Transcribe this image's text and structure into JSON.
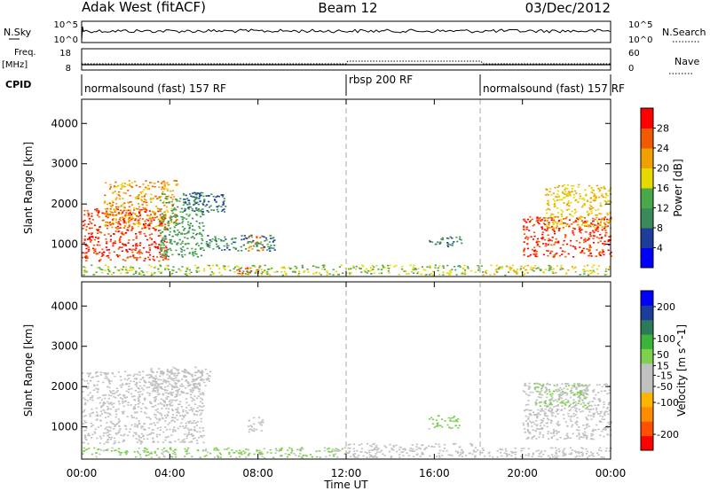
{
  "header": {
    "site": "Adak West (fitACF)",
    "beam": "Beam 12",
    "date": "03/Dec/2012"
  },
  "top_panels": {
    "nsky_label": "N.Sky",
    "nsky_ticks": [
      "10^5",
      "10^0"
    ],
    "nsearch_label": "N.Search",
    "nsearch_ticks": [
      "10^5",
      "10^0"
    ],
    "freq_label": "Freq.",
    "freq_unit": "[MHz]",
    "freq_ticks": [
      "18",
      "8"
    ],
    "nave_label": "Nave",
    "nave_ticks": [
      "60",
      "0"
    ],
    "cpid_label": "CPID",
    "cpid_segments": [
      {
        "label": "normalsound (fast) 157 RF",
        "start": 0,
        "end": 12
      },
      {
        "label": "rbsp 200 RF",
        "start": 12,
        "end": 18
      },
      {
        "label": "normalsound (fast) 157 RF",
        "start": 18,
        "end": 24
      }
    ]
  },
  "x_axis": {
    "title": "Time UT",
    "tick_labels": [
      "00:00",
      "04:00",
      "08:00",
      "12:00",
      "16:00",
      "20:00",
      "00:00"
    ]
  },
  "colors": {
    "power_scale": [
      "#0000ff",
      "#1e3c9a",
      "#3a8a5a",
      "#4aa84a",
      "#e6d800",
      "#f0a000",
      "#f05a00",
      "#ff0000"
    ],
    "velocity_scale": [
      "#ff0000",
      "#ff5000",
      "#ff8c00",
      "#ffb400",
      "#c0c0c0",
      "#c0c0c0",
      "#7ed04e",
      "#3cb43c",
      "#2d7a5a",
      "#1e3c9a",
      "#0000ff"
    ]
  },
  "chart_data": [
    {
      "type": "heatmap",
      "name": "power",
      "ylabel": "Slant Range [km]",
      "y_ticks": [
        "1000",
        "2000",
        "3000",
        "4000"
      ],
      "ylim": [
        200,
        4600
      ],
      "xlim": [
        0,
        24
      ],
      "colorbar_label": "Power [dB]",
      "colorbar_ticks": [
        "4",
        "8",
        "12",
        "16",
        "20",
        "24",
        "28"
      ],
      "colorbar_range": [
        0,
        32
      ],
      "regions": [
        {
          "t": [
            0.0,
            3.9
          ],
          "r": [
            600,
            1900
          ],
          "v": 28
        },
        {
          "t": [
            1.0,
            4.3
          ],
          "r": [
            1400,
            2600
          ],
          "v": 22
        },
        {
          "t": [
            3.5,
            5.5
          ],
          "r": [
            700,
            2300
          ],
          "v": 12
        },
        {
          "t": [
            4.5,
            6.5
          ],
          "r": [
            1800,
            2300
          ],
          "v": 8
        },
        {
          "t": [
            7.5,
            8.2
          ],
          "r": [
            850,
            1250
          ],
          "v": 24
        },
        {
          "t": [
            5.5,
            8.8
          ],
          "r": [
            850,
            1250
          ],
          "v": 10
        },
        {
          "t": [
            7.0,
            8.2
          ],
          "r": [
            250,
            450
          ],
          "v": 28
        },
        {
          "t": [
            0.0,
            18.0
          ],
          "r": [
            250,
            500
          ],
          "v": 16
        },
        {
          "t": [
            15.7,
            17.2
          ],
          "r": [
            950,
            1200
          ],
          "v": 10
        },
        {
          "t": [
            20.0,
            24.0
          ],
          "r": [
            700,
            1700
          ],
          "v": 28
        },
        {
          "t": [
            21.0,
            24.0
          ],
          "r": [
            1400,
            2500
          ],
          "v": 20
        },
        {
          "t": [
            18.0,
            24.0
          ],
          "r": [
            250,
            500
          ],
          "v": 18
        }
      ]
    },
    {
      "type": "heatmap",
      "name": "velocity",
      "ylabel": "Slant Range [km]",
      "y_ticks": [
        "1000",
        "2000",
        "3000",
        "4000"
      ],
      "ylim": [
        200,
        4600
      ],
      "xlim": [
        0,
        24
      ],
      "colorbar_label": "Velocity [m s^-1]",
      "colorbar_ticks": [
        "200",
        "100",
        "50",
        "15",
        "-15",
        "-50",
        "-100",
        "-200"
      ],
      "colorbar_range": [
        -250,
        250
      ],
      "regions": [
        {
          "t": [
            0.0,
            5.5
          ],
          "r": [
            600,
            2400
          ],
          "v": 0
        },
        {
          "t": [
            3.0,
            5.8
          ],
          "r": [
            1800,
            2500
          ],
          "v": 0
        },
        {
          "t": [
            7.5,
            8.2
          ],
          "r": [
            850,
            1250
          ],
          "v": 0
        },
        {
          "t": [
            0.0,
            12.0
          ],
          "r": [
            250,
            500
          ],
          "v": 30
        },
        {
          "t": [
            12.0,
            18.0
          ],
          "r": [
            250,
            600
          ],
          "v": -40
        },
        {
          "t": [
            15.7,
            17.2
          ],
          "r": [
            950,
            1300
          ],
          "v": 40
        },
        {
          "t": [
            20.0,
            24.0
          ],
          "r": [
            700,
            2100
          ],
          "v": 0
        },
        {
          "t": [
            20.5,
            23.0
          ],
          "r": [
            1500,
            2100
          ],
          "v": 30
        },
        {
          "t": [
            18.0,
            24.0
          ],
          "r": [
            250,
            500
          ],
          "v": -30
        }
      ]
    }
  ]
}
